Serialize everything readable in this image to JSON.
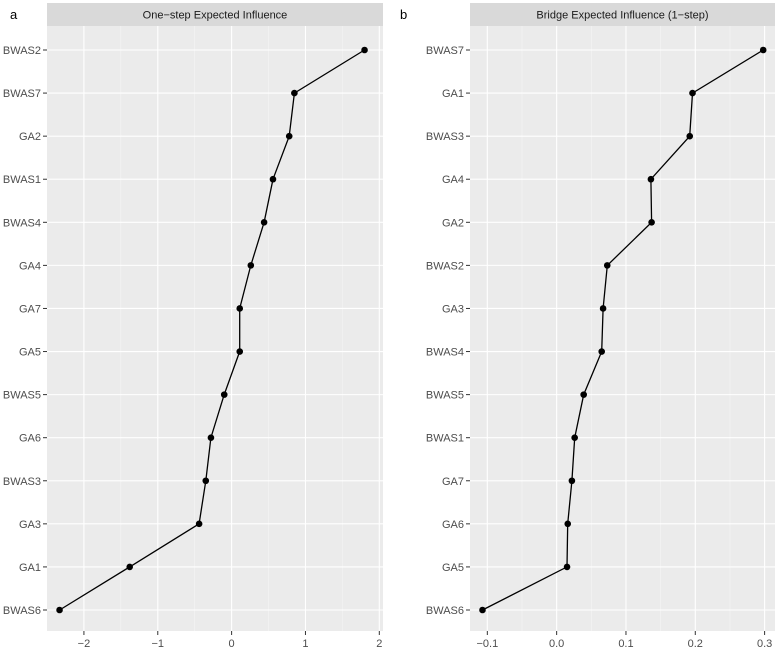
{
  "chart_data": [
    {
      "type": "line",
      "panel_tag": "a",
      "title": "One−step Expected Influence",
      "xlabel": "",
      "ylabel": "",
      "xlim": [
        -2.5,
        2.05
      ],
      "x_ticks": [
        -2,
        -1,
        0,
        1,
        2
      ],
      "x_tick_labels": [
        "−2",
        "−1",
        "0",
        "1",
        "2"
      ],
      "grid": true,
      "categories": [
        "BWAS2",
        "BWAS7",
        "GA2",
        "BWAS1",
        "BWAS4",
        "GA4",
        "GA7",
        "GA5",
        "BWAS5",
        "GA6",
        "BWAS3",
        "GA3",
        "GA1",
        "BWAS6"
      ],
      "values": [
        1.8,
        0.85,
        0.78,
        0.56,
        0.44,
        0.26,
        0.11,
        0.11,
        -0.1,
        -0.28,
        -0.35,
        -0.44,
        -1.38,
        -2.33
      ]
    },
    {
      "type": "line",
      "panel_tag": "b",
      "title": "Bridge Expected Influence (1−step)",
      "xlabel": "",
      "ylabel": "",
      "xlim": [
        -0.125,
        0.315
      ],
      "x_ticks": [
        -0.1,
        0.0,
        0.1,
        0.2,
        0.3
      ],
      "x_tick_labels": [
        "−0.1",
        "0.0",
        "0.1",
        "0.2",
        "0.3"
      ],
      "grid": true,
      "categories": [
        "BWAS7",
        "GA1",
        "BWAS3",
        "GA4",
        "GA2",
        "BWAS2",
        "GA3",
        "BWAS4",
        "BWAS5",
        "BWAS1",
        "GA7",
        "GA6",
        "GA5",
        "BWAS6"
      ],
      "values": [
        0.298,
        0.196,
        0.192,
        0.136,
        0.137,
        0.073,
        0.067,
        0.065,
        0.039,
        0.026,
        0.022,
        0.016,
        0.015,
        -0.107
      ]
    }
  ]
}
